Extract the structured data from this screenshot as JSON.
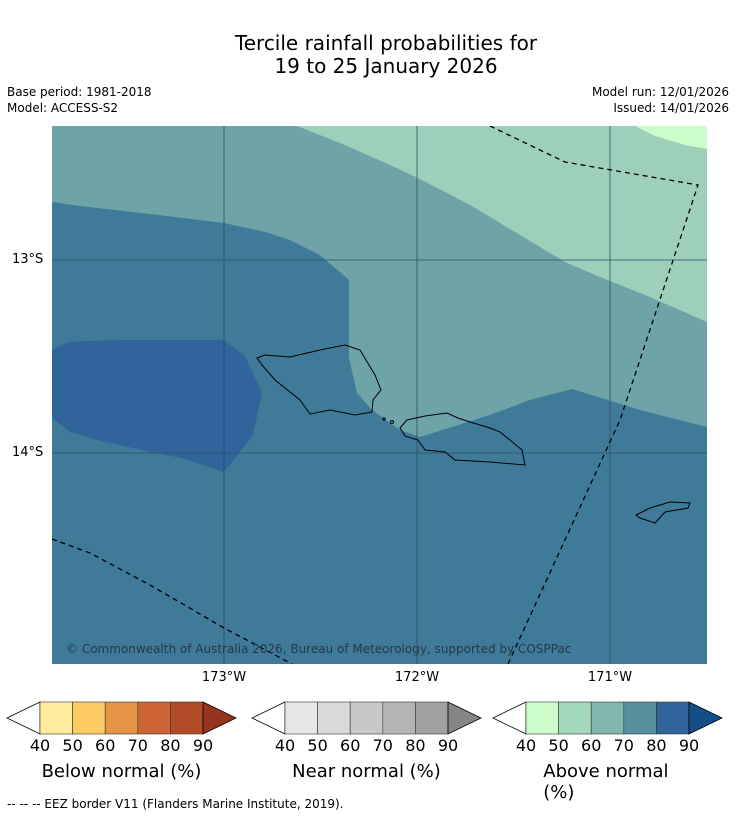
{
  "header": {
    "title_line1": "Tercile rainfall probabilities for",
    "title_line2": "19 to 25 January 2026",
    "base_period": "Base period: 1981-2018",
    "model": "Model: ACCESS-S2",
    "model_run": "Model run: 12/01/2026",
    "issued": "Issued: 14/01/2026"
  },
  "map": {
    "lat_labels": [
      "13°S",
      "14°S"
    ],
    "lon_labels": [
      "173°W",
      "172°W",
      "171°W"
    ],
    "copyright": "© Commonwealth of Australia 2026, Bureau of Meteorology, supported by COSPPac",
    "colors": {
      "above_40_50": "#ccfccc",
      "above_50_60": "#9dcfba",
      "above_60_70": "#6ea3a7",
      "above_70_80": "#407a99",
      "above_80_90": "#30649a"
    }
  },
  "legends": [
    {
      "title": "Below normal (%)",
      "ticks": [
        "40",
        "50",
        "60",
        "70",
        "80",
        "90"
      ],
      "colors": [
        "#ffeb9c",
        "#fecb64",
        "#e39446",
        "#ce6433",
        "#b24b27",
        "#96341f"
      ]
    },
    {
      "title": "Near normal (%)",
      "ticks": [
        "40",
        "50",
        "60",
        "70",
        "80",
        "90"
      ],
      "colors": [
        "#e6e6e6",
        "#d9d9d9",
        "#c8c8c8",
        "#b5b5b5",
        "#a0a0a0",
        "#858585"
      ]
    },
    {
      "title": "Above normal (%)",
      "ticks": [
        "40",
        "50",
        "60",
        "70",
        "80",
        "90"
      ],
      "colors": [
        "#ccfccc",
        "#a3d8bb",
        "#81b6ae",
        "#588f9e",
        "#30649a",
        "#134f86"
      ]
    }
  ],
  "footer": {
    "eez_note": "--  --  -- EEZ border V11 (Flanders Marine Institute, 2019)."
  }
}
